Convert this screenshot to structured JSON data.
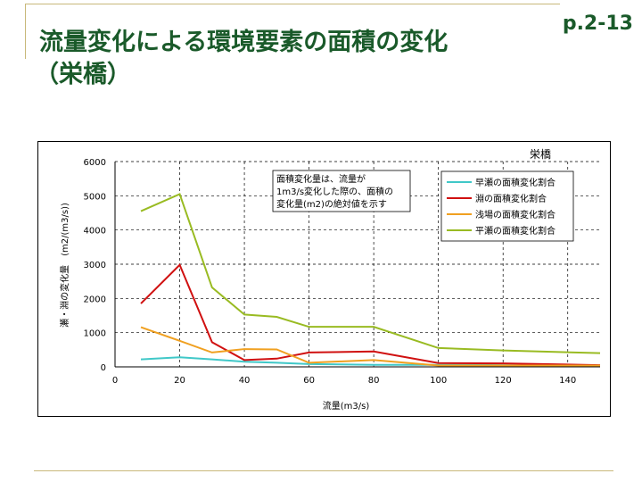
{
  "page": {
    "page_number": "p.2-13",
    "title_line1": "流量変化による環境要素の面積の変化",
    "title_line2": "（栄橋）"
  },
  "colors": {
    "accent_line": "#c8b87a",
    "title_text": "#1a5a2a",
    "series": [
      "#40c8c8",
      "#d01010",
      "#f0a020",
      "#99bb22"
    ]
  },
  "chart_data": {
    "type": "line",
    "title": "栄橋",
    "xlabel": "流量(m3/s)",
    "ylabel": "瀬・淵の変化量　(m2/(m3/s))",
    "xlim": [
      0,
      150
    ],
    "ylim": [
      0,
      6000
    ],
    "x_ticks": [
      "0",
      "20",
      "40",
      "60",
      "80",
      "100",
      "120",
      "140"
    ],
    "y_ticks": [
      "0",
      "1000",
      "2000",
      "3000",
      "4000",
      "5000",
      "6000"
    ],
    "grid": "vertical dashed and horizontal dashed",
    "legend_position": "top-right",
    "annotation": [
      "面積変化量は、流量が",
      "1m3/s変化した際の、面積の",
      "変化量(m2)の絶対値を示す"
    ],
    "series": [
      {
        "name": "早瀬の面積変化割合",
        "x": [
          8,
          20,
          30,
          40,
          50,
          60,
          80,
          100,
          120,
          150
        ],
        "values": [
          220,
          280,
          220,
          150,
          120,
          80,
          60,
          60,
          50,
          40
        ]
      },
      {
        "name": "淵の面積変化割合",
        "x": [
          8,
          20,
          30,
          40,
          50,
          60,
          80,
          100,
          120,
          150
        ],
        "values": [
          1850,
          2980,
          720,
          200,
          240,
          420,
          450,
          110,
          100,
          50
        ]
      },
      {
        "name": "浅場の面積変化割合",
        "x": [
          8,
          20,
          30,
          40,
          50,
          60,
          80,
          100,
          120,
          150
        ],
        "values": [
          1160,
          760,
          420,
          520,
          510,
          120,
          200,
          40,
          40,
          40
        ]
      },
      {
        "name": "平瀬の面積変化割合",
        "x": [
          8,
          20,
          30,
          40,
          50,
          60,
          80,
          100,
          120,
          150
        ],
        "values": [
          4550,
          5050,
          2320,
          1530,
          1460,
          1170,
          1170,
          550,
          480,
          400
        ]
      }
    ]
  }
}
